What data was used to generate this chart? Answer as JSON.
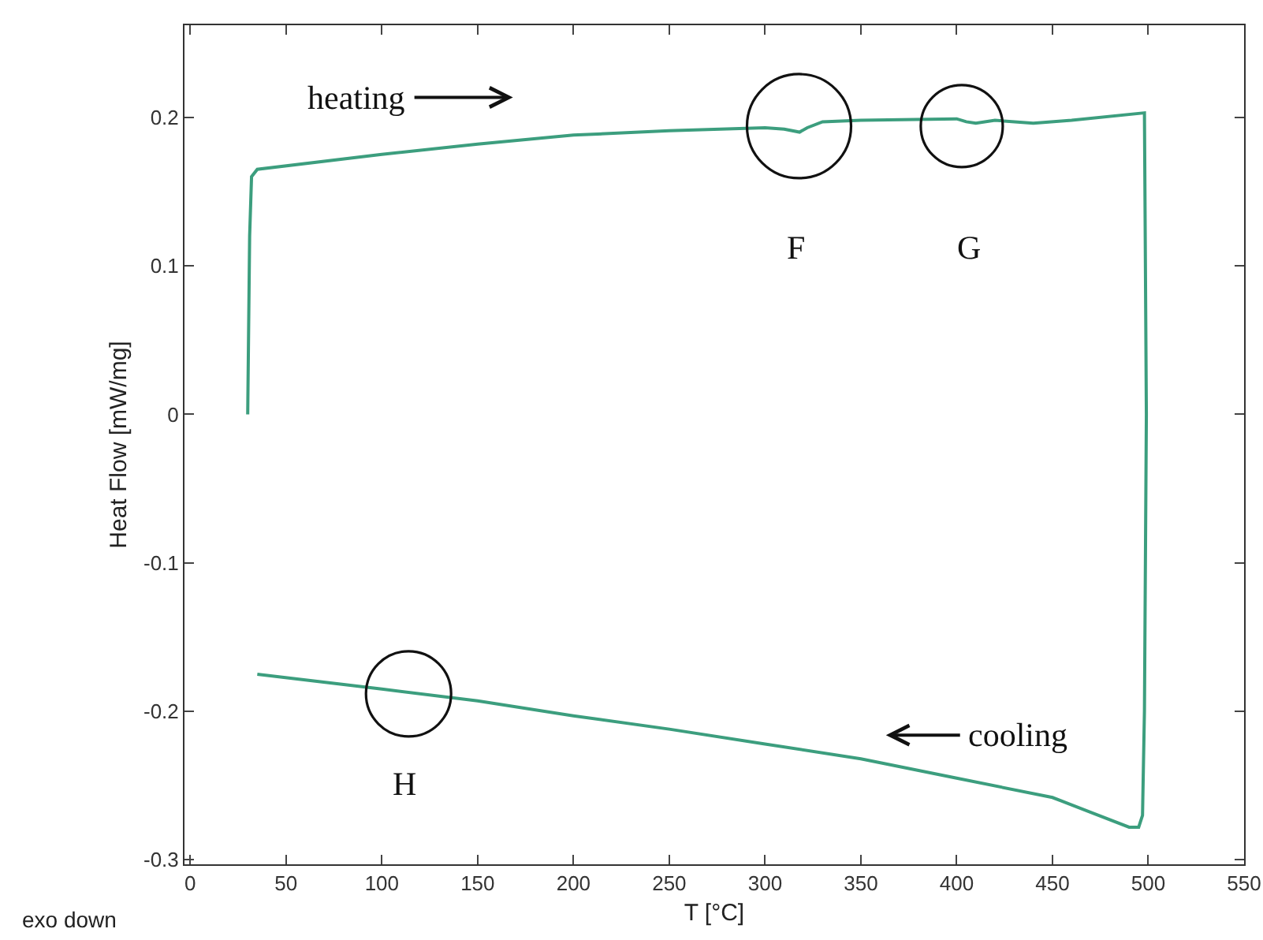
{
  "chart_data": {
    "type": "line",
    "xlabel": "T [°C]",
    "ylabel": "Heat Flow [mW/mg]",
    "x": [
      30,
      31,
      32,
      35,
      100,
      150,
      200,
      250,
      300,
      310,
      318,
      322,
      330,
      350,
      400,
      405,
      410,
      420,
      440,
      460,
      498,
      499,
      498,
      497,
      495,
      490,
      470,
      450,
      400,
      350,
      300,
      250,
      200,
      150,
      100,
      35
    ],
    "series": [
      {
        "color": "#3c9e7e",
        "values": [
          0.0,
          0.12,
          0.16,
          0.165,
          0.175,
          0.182,
          0.188,
          0.191,
          0.193,
          0.192,
          0.19,
          0.193,
          0.197,
          0.198,
          0.199,
          0.197,
          0.196,
          0.198,
          0.196,
          0.198,
          0.203,
          0.0,
          -0.2,
          -0.27,
          -0.278,
          -0.278,
          -0.268,
          -0.258,
          -0.245,
          -0.232,
          -0.222,
          -0.212,
          -0.203,
          -0.193,
          -0.185,
          -0.175
        ]
      }
    ],
    "xlim": [
      -3,
      550
    ],
    "xticks": [
      0,
      50,
      100,
      150,
      200,
      250,
      300,
      350,
      400,
      450,
      500,
      550
    ],
    "ylim": [
      -0.303,
      0.262
    ],
    "yticks": [
      -0.3,
      -0.2,
      -0.1,
      0,
      0.1,
      0.2
    ],
    "line_style": "solid",
    "annotations": [
      "heating",
      "cooling",
      "F",
      "G",
      "H",
      "exo down"
    ]
  }
}
